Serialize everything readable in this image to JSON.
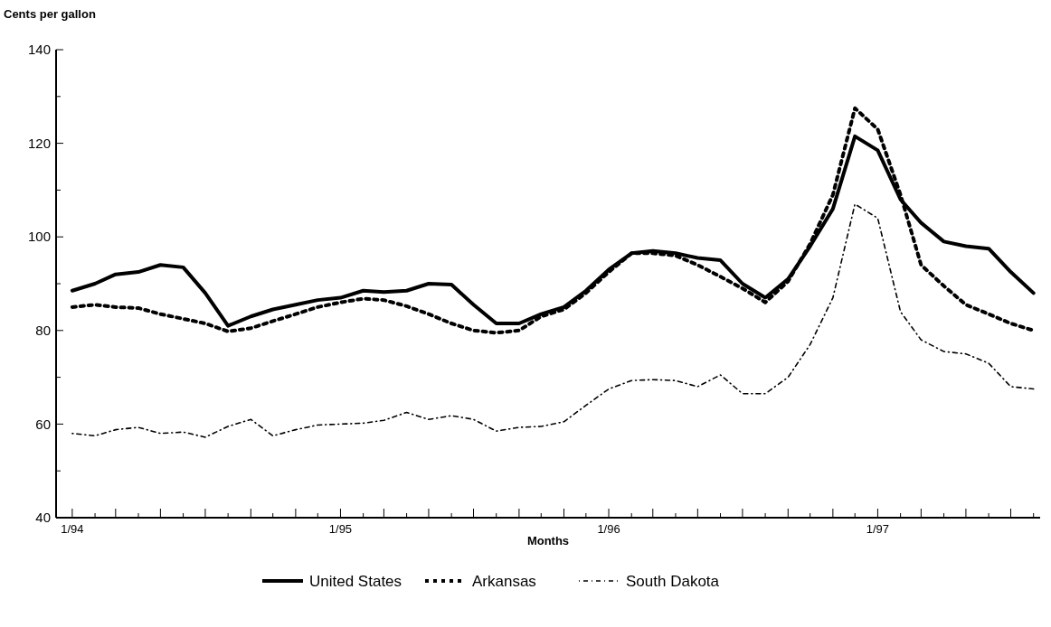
{
  "chart_data": {
    "type": "line",
    "ylabel": "Cents per gallon",
    "xlabel": "Months",
    "x": [
      "1994-01",
      "1994-02",
      "1994-03",
      "1994-04",
      "1994-05",
      "1994-06",
      "1994-07",
      "1994-08",
      "1994-09",
      "1994-10",
      "1994-11",
      "1994-12",
      "1995-01",
      "1995-02",
      "1995-03",
      "1995-04",
      "1995-05",
      "1995-06",
      "1995-07",
      "1995-08",
      "1995-09",
      "1995-10",
      "1995-11",
      "1995-12",
      "1996-01",
      "1996-02",
      "1996-03",
      "1996-04",
      "1996-05",
      "1996-06",
      "1996-07",
      "1996-08",
      "1996-09",
      "1996-10",
      "1996-11",
      "1996-12",
      "1997-01",
      "1997-02",
      "1997-03",
      "1997-04",
      "1997-05",
      "1997-06",
      "1997-07",
      "1997-08"
    ],
    "xlim": [
      "1993-12-10",
      "1997-08-10"
    ],
    "xticks": [
      {
        "value": "1994-01",
        "label": "1/94"
      },
      {
        "value": "1994-02",
        "label": null
      },
      {
        "value": "1994-03",
        "label": null
      },
      {
        "value": "1994-04",
        "label": null
      },
      {
        "value": "1994-05",
        "label": null
      },
      {
        "value": "1994-06",
        "label": null
      },
      {
        "value": "1994-07",
        "label": null
      },
      {
        "value": "1994-08",
        "label": null
      },
      {
        "value": "1994-09",
        "label": null
      },
      {
        "value": "1994-10",
        "label": null
      },
      {
        "value": "1994-11",
        "label": null
      },
      {
        "value": "1994-12",
        "label": null
      },
      {
        "value": "1995-01",
        "label": "1/95"
      },
      {
        "value": "1995-02",
        "label": null
      },
      {
        "value": "1995-03",
        "label": null
      },
      {
        "value": "1995-04",
        "label": null
      },
      {
        "value": "1995-05",
        "label": null
      },
      {
        "value": "1995-06",
        "label": null
      },
      {
        "value": "1995-07",
        "label": null
      },
      {
        "value": "1995-08",
        "label": null
      },
      {
        "value": "1995-09",
        "label": null
      },
      {
        "value": "1995-10",
        "label": null
      },
      {
        "value": "1995-11",
        "label": null
      },
      {
        "value": "1995-12",
        "label": null
      },
      {
        "value": "1996-01",
        "label": "1/96"
      },
      {
        "value": "1996-02",
        "label": null
      },
      {
        "value": "1996-03",
        "label": null
      },
      {
        "value": "1996-04",
        "label": null
      },
      {
        "value": "1996-05",
        "label": null
      },
      {
        "value": "1996-06",
        "label": null
      },
      {
        "value": "1996-07",
        "label": null
      },
      {
        "value": "1996-08",
        "label": null
      },
      {
        "value": "1996-09",
        "label": null
      },
      {
        "value": "1996-10",
        "label": null
      },
      {
        "value": "1996-11",
        "label": null
      },
      {
        "value": "1996-12",
        "label": null
      },
      {
        "value": "1997-01",
        "label": "1/97"
      },
      {
        "value": "1997-02",
        "label": null
      },
      {
        "value": "1997-03",
        "label": null
      },
      {
        "value": "1997-04",
        "label": null
      },
      {
        "value": "1997-05",
        "label": null
      },
      {
        "value": "1997-06",
        "label": null
      },
      {
        "value": "1997-07",
        "label": null
      },
      {
        "value": "1997-08",
        "label": null
      }
    ],
    "ylim": [
      40,
      140
    ],
    "yticks": [
      40,
      {
        "value": 50,
        "label": null
      },
      60,
      {
        "value": 70,
        "label": null
      },
      80,
      {
        "value": 90,
        "label": null
      },
      100,
      {
        "value": 110,
        "label": null
      },
      120,
      {
        "value": 130,
        "label": null
      },
      140
    ],
    "grid": false,
    "legend": "bottom",
    "marker": "none",
    "series": [
      {
        "name": "United States",
        "color": "#000000",
        "line_style": "solid",
        "values": [
          88.5,
          90,
          92,
          92.5,
          94,
          93.5,
          88,
          81,
          83,
          84.5,
          85.5,
          86.5,
          87,
          88.5,
          88.2,
          88.5,
          90,
          89.8,
          85.5,
          81.5,
          81.5,
          83.5,
          85,
          88.5,
          93,
          96.5,
          97,
          96.5,
          95.5,
          95,
          90,
          87,
          91,
          98,
          106,
          121.5,
          118.5,
          108,
          103,
          99,
          98,
          97.5,
          92.5,
          88
        ]
      },
      {
        "name": "Arkansas",
        "color": "#000000",
        "line_style": "dashed",
        "values": [
          85,
          85.5,
          85,
          84.8,
          83.5,
          82.5,
          81.5,
          79.8,
          80.5,
          82,
          83.5,
          85,
          86,
          86.8,
          86.5,
          85.2,
          83.5,
          81.5,
          80,
          79.5,
          80,
          83,
          84.5,
          88,
          92.5,
          96.5,
          96.5,
          96,
          94,
          91.5,
          89,
          86,
          90.5,
          98.5,
          109,
          127.5,
          123,
          109,
          94,
          89.5,
          85.5,
          83.5,
          81.5,
          80
        ]
      },
      {
        "name": "South Dakota",
        "color": "#000000",
        "line_style": "dotted",
        "values": [
          58,
          57.5,
          58.8,
          59.3,
          58,
          58.3,
          57.2,
          59.5,
          61,
          57.5,
          58.8,
          59.8,
          60,
          60.2,
          60.8,
          62.5,
          61,
          61.8,
          61,
          58.5,
          59.3,
          59.5,
          60.5,
          64,
          67.5,
          69.3,
          69.5,
          69.3,
          68,
          70.5,
          66.5,
          66.5,
          70,
          77,
          87,
          107,
          104,
          84,
          78,
          75.5,
          75,
          73,
          68,
          67.5
        ]
      }
    ]
  }
}
